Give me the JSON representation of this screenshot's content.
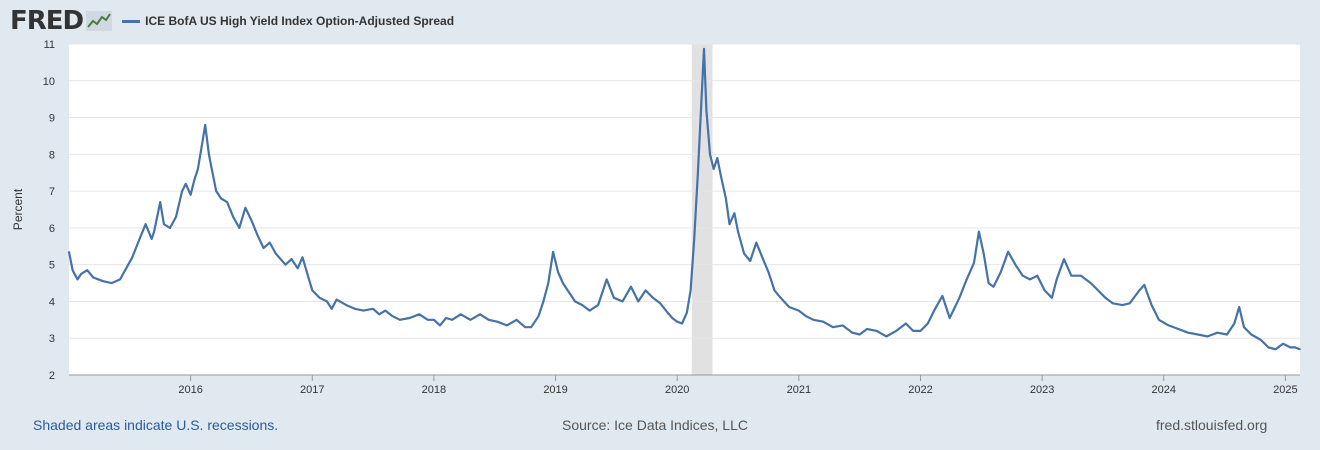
{
  "header": {
    "logo_text": "FRED",
    "logo_icon": "trend-chart-icon"
  },
  "footer": {
    "recession_note": "Shaded areas indicate U.S. recessions.",
    "source": "Source: Ice Data Indices, LLC",
    "site": "fred.stlouisfed.org"
  },
  "colors": {
    "background": "#e1e9f0",
    "plot_bg": "#ffffff",
    "series": "#4572a7",
    "recession": "#e1e1e1",
    "grid": "#e6e6e6"
  },
  "chart_data": {
    "type": "line",
    "title": "",
    "xlabel": "",
    "ylabel": "Percent",
    "xlim": [
      2015.0,
      2025.12
    ],
    "ylim": [
      2,
      11
    ],
    "y_ticks": [
      2,
      3,
      4,
      5,
      6,
      7,
      8,
      9,
      10,
      11
    ],
    "x_ticks": [
      "2016",
      "2017",
      "2018",
      "2019",
      "2020",
      "2021",
      "2022",
      "2023",
      "2024",
      "2025"
    ],
    "x_tick_values": [
      2016,
      2017,
      2018,
      2019,
      2020,
      2021,
      2022,
      2023,
      2024,
      2025
    ],
    "grid": true,
    "legend": "top-left",
    "recessions": [
      {
        "start": 2020.12,
        "end": 2020.29
      }
    ],
    "series": [
      {
        "name": "ICE BofA US High Yield Index Option-Adjusted Spread",
        "color": "#4572a7",
        "points": [
          [
            2015.0,
            5.35
          ],
          [
            2015.03,
            4.85
          ],
          [
            2015.07,
            4.6
          ],
          [
            2015.1,
            4.75
          ],
          [
            2015.15,
            4.85
          ],
          [
            2015.2,
            4.65
          ],
          [
            2015.28,
            4.55
          ],
          [
            2015.35,
            4.5
          ],
          [
            2015.42,
            4.6
          ],
          [
            2015.47,
            4.9
          ],
          [
            2015.52,
            5.2
          ],
          [
            2015.58,
            5.7
          ],
          [
            2015.63,
            6.1
          ],
          [
            2015.68,
            5.7
          ],
          [
            2015.7,
            5.9
          ],
          [
            2015.75,
            6.7
          ],
          [
            2015.78,
            6.1
          ],
          [
            2015.83,
            6.0
          ],
          [
            2015.88,
            6.3
          ],
          [
            2015.93,
            7.0
          ],
          [
            2015.96,
            7.2
          ],
          [
            2016.0,
            6.9
          ],
          [
            2016.03,
            7.3
          ],
          [
            2016.06,
            7.6
          ],
          [
            2016.09,
            8.2
          ],
          [
            2016.12,
            8.8
          ],
          [
            2016.15,
            8.0
          ],
          [
            2016.18,
            7.5
          ],
          [
            2016.21,
            7.0
          ],
          [
            2016.25,
            6.8
          ],
          [
            2016.3,
            6.7
          ],
          [
            2016.35,
            6.3
          ],
          [
            2016.4,
            6.0
          ],
          [
            2016.45,
            6.55
          ],
          [
            2016.5,
            6.2
          ],
          [
            2016.55,
            5.8
          ],
          [
            2016.6,
            5.45
          ],
          [
            2016.65,
            5.6
          ],
          [
            2016.7,
            5.3
          ],
          [
            2016.78,
            5.0
          ],
          [
            2016.83,
            5.15
          ],
          [
            2016.88,
            4.9
          ],
          [
            2016.92,
            5.2
          ],
          [
            2016.96,
            4.75
          ],
          [
            2017.0,
            4.3
          ],
          [
            2017.06,
            4.1
          ],
          [
            2017.12,
            4.0
          ],
          [
            2017.16,
            3.8
          ],
          [
            2017.2,
            4.05
          ],
          [
            2017.28,
            3.9
          ],
          [
            2017.35,
            3.8
          ],
          [
            2017.42,
            3.75
          ],
          [
            2017.5,
            3.8
          ],
          [
            2017.55,
            3.65
          ],
          [
            2017.6,
            3.75
          ],
          [
            2017.66,
            3.6
          ],
          [
            2017.72,
            3.5
          ],
          [
            2017.8,
            3.55
          ],
          [
            2017.88,
            3.65
          ],
          [
            2017.95,
            3.5
          ],
          [
            2018.0,
            3.5
          ],
          [
            2018.05,
            3.35
          ],
          [
            2018.1,
            3.55
          ],
          [
            2018.15,
            3.5
          ],
          [
            2018.22,
            3.65
          ],
          [
            2018.3,
            3.5
          ],
          [
            2018.38,
            3.65
          ],
          [
            2018.45,
            3.5
          ],
          [
            2018.52,
            3.45
          ],
          [
            2018.6,
            3.35
          ],
          [
            2018.68,
            3.5
          ],
          [
            2018.75,
            3.3
          ],
          [
            2018.8,
            3.3
          ],
          [
            2018.86,
            3.6
          ],
          [
            2018.9,
            4.0
          ],
          [
            2018.94,
            4.5
          ],
          [
            2018.98,
            5.35
          ],
          [
            2019.02,
            4.8
          ],
          [
            2019.06,
            4.5
          ],
          [
            2019.1,
            4.3
          ],
          [
            2019.16,
            4.0
          ],
          [
            2019.22,
            3.9
          ],
          [
            2019.28,
            3.75
          ],
          [
            2019.35,
            3.9
          ],
          [
            2019.42,
            4.6
          ],
          [
            2019.48,
            4.1
          ],
          [
            2019.55,
            4.0
          ],
          [
            2019.62,
            4.4
          ],
          [
            2019.68,
            4.0
          ],
          [
            2019.74,
            4.3
          ],
          [
            2019.8,
            4.1
          ],
          [
            2019.86,
            3.95
          ],
          [
            2019.92,
            3.7
          ],
          [
            2019.96,
            3.55
          ],
          [
            2020.0,
            3.45
          ],
          [
            2020.04,
            3.4
          ],
          [
            2020.08,
            3.7
          ],
          [
            2020.11,
            4.3
          ],
          [
            2020.14,
            5.7
          ],
          [
            2020.17,
            7.5
          ],
          [
            2020.2,
            9.5
          ],
          [
            2020.22,
            10.87
          ],
          [
            2020.24,
            9.2
          ],
          [
            2020.27,
            8.0
          ],
          [
            2020.3,
            7.6
          ],
          [
            2020.33,
            7.9
          ],
          [
            2020.36,
            7.4
          ],
          [
            2020.4,
            6.8
          ],
          [
            2020.43,
            6.1
          ],
          [
            2020.47,
            6.4
          ],
          [
            2020.5,
            5.9
          ],
          [
            2020.55,
            5.3
          ],
          [
            2020.6,
            5.1
          ],
          [
            2020.65,
            5.6
          ],
          [
            2020.7,
            5.2
          ],
          [
            2020.75,
            4.8
          ],
          [
            2020.8,
            4.3
          ],
          [
            2020.85,
            4.1
          ],
          [
            2020.92,
            3.85
          ],
          [
            2021.0,
            3.75
          ],
          [
            2021.06,
            3.6
          ],
          [
            2021.12,
            3.5
          ],
          [
            2021.2,
            3.45
          ],
          [
            2021.28,
            3.3
          ],
          [
            2021.36,
            3.35
          ],
          [
            2021.44,
            3.15
          ],
          [
            2021.5,
            3.1
          ],
          [
            2021.56,
            3.25
          ],
          [
            2021.64,
            3.2
          ],
          [
            2021.72,
            3.05
          ],
          [
            2021.8,
            3.2
          ],
          [
            2021.88,
            3.4
          ],
          [
            2021.94,
            3.2
          ],
          [
            2022.0,
            3.2
          ],
          [
            2022.06,
            3.4
          ],
          [
            2022.12,
            3.8
          ],
          [
            2022.18,
            4.15
          ],
          [
            2022.24,
            3.55
          ],
          [
            2022.32,
            4.1
          ],
          [
            2022.38,
            4.6
          ],
          [
            2022.44,
            5.05
          ],
          [
            2022.48,
            5.9
          ],
          [
            2022.52,
            5.3
          ],
          [
            2022.56,
            4.5
          ],
          [
            2022.6,
            4.4
          ],
          [
            2022.66,
            4.8
          ],
          [
            2022.72,
            5.35
          ],
          [
            2022.78,
            5.0
          ],
          [
            2022.84,
            4.7
          ],
          [
            2022.9,
            4.6
          ],
          [
            2022.96,
            4.7
          ],
          [
            2023.02,
            4.3
          ],
          [
            2023.08,
            4.1
          ],
          [
            2023.12,
            4.6
          ],
          [
            2023.18,
            5.15
          ],
          [
            2023.24,
            4.7
          ],
          [
            2023.32,
            4.7
          ],
          [
            2023.4,
            4.5
          ],
          [
            2023.46,
            4.3
          ],
          [
            2023.52,
            4.1
          ],
          [
            2023.58,
            3.95
          ],
          [
            2023.66,
            3.9
          ],
          [
            2023.72,
            3.95
          ],
          [
            2023.8,
            4.3
          ],
          [
            2023.84,
            4.45
          ],
          [
            2023.9,
            3.9
          ],
          [
            2023.96,
            3.5
          ],
          [
            2024.04,
            3.35
          ],
          [
            2024.12,
            3.25
          ],
          [
            2024.2,
            3.15
          ],
          [
            2024.28,
            3.1
          ],
          [
            2024.36,
            3.05
          ],
          [
            2024.44,
            3.15
          ],
          [
            2024.52,
            3.1
          ],
          [
            2024.58,
            3.4
          ],
          [
            2024.62,
            3.85
          ],
          [
            2024.66,
            3.3
          ],
          [
            2024.72,
            3.1
          ],
          [
            2024.8,
            2.95
          ],
          [
            2024.86,
            2.75
          ],
          [
            2024.92,
            2.7
          ],
          [
            2024.98,
            2.85
          ],
          [
            2025.04,
            2.75
          ],
          [
            2025.08,
            2.75
          ],
          [
            2025.12,
            2.7
          ]
        ]
      }
    ]
  }
}
